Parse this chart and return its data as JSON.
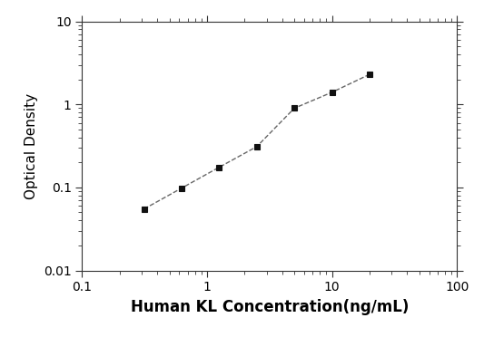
{
  "x": [
    0.313,
    0.625,
    1.25,
    2.5,
    5.0,
    10.0,
    20.0
  ],
  "y": [
    0.055,
    0.098,
    0.175,
    0.31,
    0.9,
    1.4,
    2.3
  ],
  "xlabel": "Human KL Concentration(ng/mL)",
  "ylabel": "Optical Density",
  "xlim": [
    0.1,
    100
  ],
  "ylim": [
    0.01,
    10
  ],
  "xticks": [
    0.1,
    1,
    10,
    100
  ],
  "yticks": [
    0.01,
    0.1,
    1,
    10
  ],
  "xtick_labels": [
    "0.1",
    "1",
    "10",
    "100"
  ],
  "ytick_labels": [
    "0.01",
    "0.1",
    "1",
    "10"
  ],
  "line_color": "#666666",
  "marker_color": "#111111",
  "marker": "s",
  "marker_size": 5,
  "line_width": 1.0,
  "linestyle": "--",
  "background_color": "#ffffff",
  "xlabel_fontsize": 12,
  "ylabel_fontsize": 11,
  "tick_fontsize": 10,
  "xlabel_fontweight": "bold"
}
